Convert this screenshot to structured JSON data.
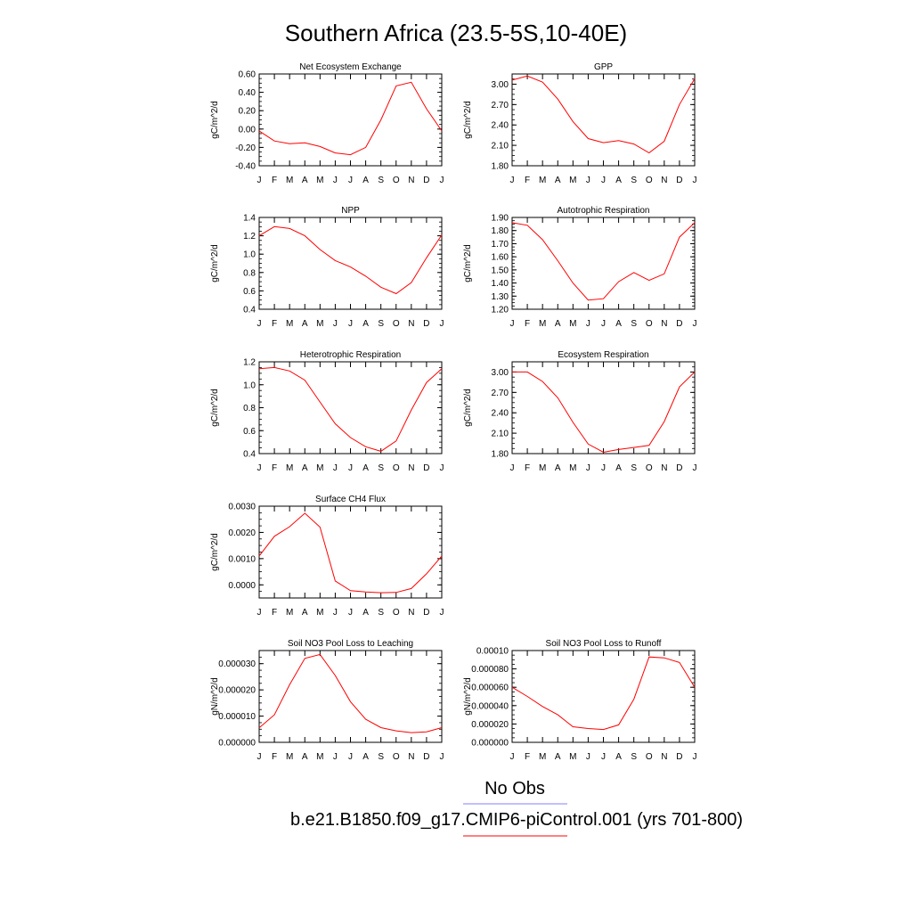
{
  "page_title": "Southern Africa (23.5-5S,10-40E)",
  "legend": {
    "obs_label": "No Obs",
    "obs_color": "#8080ff",
    "model_label": "b.e21.B1850.f09_g17.CMIP6-piControl.001 (yrs 701-800)",
    "model_color": "#ff0000"
  },
  "chart_data": [
    {
      "type": "line",
      "title": "Net Ecosystem Exchange",
      "ylabel": "gC/m^2/d",
      "x": [
        "J",
        "F",
        "M",
        "A",
        "M",
        "J",
        "J",
        "A",
        "S",
        "O",
        "N",
        "D",
        "J"
      ],
      "ylim": [
        -0.4,
        0.6
      ],
      "yticks": [
        "-0.40",
        "-0.20",
        "0.00",
        "0.20",
        "0.40",
        "0.60"
      ],
      "yticks_val": [
        -0.4,
        -0.2,
        0.0,
        0.2,
        0.4,
        0.6
      ],
      "series": [
        {
          "values": [
            -0.02,
            -0.13,
            -0.16,
            -0.15,
            -0.19,
            -0.26,
            -0.28,
            -0.2,
            0.1,
            0.47,
            0.51,
            0.22,
            -0.02
          ]
        }
      ]
    },
    {
      "type": "line",
      "title": "GPP",
      "ylabel": "gC/m^2/d",
      "x": [
        "J",
        "F",
        "M",
        "A",
        "M",
        "J",
        "J",
        "A",
        "S",
        "O",
        "N",
        "D",
        "J"
      ],
      "ylim": [
        1.8,
        3.15
      ],
      "yticks": [
        "1.80",
        "2.10",
        "2.40",
        "2.70",
        "3.00"
      ],
      "yticks_val": [
        1.8,
        2.1,
        2.4,
        2.7,
        3.0
      ],
      "series": [
        {
          "values": [
            3.06,
            3.12,
            3.03,
            2.78,
            2.45,
            2.2,
            2.14,
            2.17,
            2.12,
            1.99,
            2.16,
            2.7,
            3.08
          ]
        }
      ]
    },
    {
      "type": "line",
      "title": "NPP",
      "ylabel": "gC/m^2/d",
      "x": [
        "J",
        "F",
        "M",
        "A",
        "M",
        "J",
        "J",
        "A",
        "S",
        "O",
        "N",
        "D",
        "J"
      ],
      "ylim": [
        0.4,
        1.4
      ],
      "yticks": [
        "0.4",
        "0.6",
        "0.8",
        "1.0",
        "1.2",
        "1.4"
      ],
      "yticks_val": [
        0.4,
        0.6,
        0.8,
        1.0,
        1.2,
        1.4
      ],
      "series": [
        {
          "values": [
            1.2,
            1.3,
            1.28,
            1.2,
            1.05,
            0.93,
            0.86,
            0.76,
            0.64,
            0.57,
            0.69,
            0.96,
            1.21
          ]
        }
      ]
    },
    {
      "type": "line",
      "title": "Autotrophic Respiration",
      "ylabel": "gC/m^2/d",
      "x": [
        "J",
        "F",
        "M",
        "A",
        "M",
        "J",
        "J",
        "A",
        "S",
        "O",
        "N",
        "D",
        "J"
      ],
      "ylim": [
        1.2,
        1.9
      ],
      "yticks": [
        "1.20",
        "1.30",
        "1.40",
        "1.50",
        "1.60",
        "1.70",
        "1.80",
        "1.90"
      ],
      "yticks_val": [
        1.2,
        1.3,
        1.4,
        1.5,
        1.6,
        1.7,
        1.8,
        1.9
      ],
      "series": [
        {
          "values": [
            1.86,
            1.84,
            1.73,
            1.57,
            1.4,
            1.27,
            1.28,
            1.41,
            1.48,
            1.42,
            1.47,
            1.75,
            1.86
          ]
        }
      ]
    },
    {
      "type": "line",
      "title": "Heterotrophic Respiration",
      "ylabel": "gC/m^2/d",
      "x": [
        "J",
        "F",
        "M",
        "A",
        "M",
        "J",
        "J",
        "A",
        "S",
        "O",
        "N",
        "D",
        "J"
      ],
      "ylim": [
        0.4,
        1.2
      ],
      "yticks": [
        "0.4",
        "0.6",
        "0.8",
        "1.0",
        "1.2"
      ],
      "yticks_val": [
        0.4,
        0.6,
        0.8,
        1.0,
        1.2
      ],
      "series": [
        {
          "values": [
            1.14,
            1.15,
            1.12,
            1.04,
            0.85,
            0.66,
            0.54,
            0.46,
            0.42,
            0.51,
            0.78,
            1.02,
            1.14
          ]
        }
      ]
    },
    {
      "type": "line",
      "title": "Ecosystem Respiration",
      "ylabel": "gC/m^2/d",
      "x": [
        "J",
        "F",
        "M",
        "A",
        "M",
        "J",
        "J",
        "A",
        "S",
        "O",
        "N",
        "D",
        "J"
      ],
      "ylim": [
        1.8,
        3.15
      ],
      "yticks": [
        "1.80",
        "2.10",
        "2.40",
        "2.70",
        "3.00"
      ],
      "yticks_val": [
        1.8,
        2.1,
        2.4,
        2.7,
        3.0
      ],
      "series": [
        {
          "values": [
            3.0,
            3.0,
            2.86,
            2.62,
            2.26,
            1.94,
            1.82,
            1.86,
            1.89,
            1.92,
            2.27,
            2.78,
            3.0
          ]
        }
      ]
    },
    {
      "type": "line",
      "title": "Surface CH4 Flux",
      "ylabel": "gC/m^2/d",
      "x": [
        "J",
        "F",
        "M",
        "A",
        "M",
        "J",
        "J",
        "A",
        "S",
        "O",
        "N",
        "D",
        "J"
      ],
      "ylim": [
        -0.0005,
        0.003
      ],
      "yticks": [
        "0.0000",
        "0.0010",
        "0.0020",
        "0.0030"
      ],
      "yticks_val": [
        0.0,
        0.001,
        0.002,
        0.003
      ],
      "series": [
        {
          "values": [
            0.0011,
            0.00185,
            0.00222,
            0.00273,
            0.0022,
            0.00015,
            -0.00022,
            -0.00027,
            -0.0003,
            -0.00029,
            -0.00014,
            0.00042,
            0.0011
          ]
        }
      ]
    },
    {
      "type": "line",
      "title": "Soil NO3 Pool Loss to Leaching",
      "ylabel": "gN/m^2/d",
      "x": [
        "J",
        "F",
        "M",
        "A",
        "M",
        "J",
        "J",
        "A",
        "S",
        "O",
        "N",
        "D",
        "J"
      ],
      "ylim": [
        0.0,
        3.5e-05
      ],
      "yticks": [
        "0.000000",
        "0.000010",
        "0.000020",
        "0.000030"
      ],
      "yticks_val": [
        0.0,
        1e-05,
        2e-05,
        3e-05
      ],
      "series": [
        {
          "values": [
            5.5e-06,
            1.05e-05,
            2.2e-05,
            3.2e-05,
            3.35e-05,
            2.55e-05,
            1.55e-05,
            8.8e-06,
            5.6e-06,
            4.4e-06,
            3.7e-06,
            4e-06,
            5.6e-06
          ]
        }
      ]
    },
    {
      "type": "line",
      "title": "Soil NO3 Pool Loss to Runoff",
      "ylabel": "gN/m^2/d",
      "x": [
        "J",
        "F",
        "M",
        "A",
        "M",
        "J",
        "J",
        "A",
        "S",
        "O",
        "N",
        "D",
        "J"
      ],
      "ylim": [
        0.0,
        0.0001
      ],
      "yticks": [
        "0.000000",
        "0.000020",
        "0.000040",
        "0.000060",
        "0.000080",
        "0.00010"
      ],
      "yticks_val": [
        0.0,
        2e-05,
        4e-05,
        6e-05,
        8e-05,
        0.0001
      ],
      "series": [
        {
          "values": [
            6e-05,
            5e-05,
            3.9e-05,
            3e-05,
            1.7e-05,
            1.5e-05,
            1.4e-05,
            1.9e-05,
            4.7e-05,
            9.3e-05,
            9.2e-05,
            8.7e-05,
            6e-05
          ]
        }
      ]
    }
  ]
}
